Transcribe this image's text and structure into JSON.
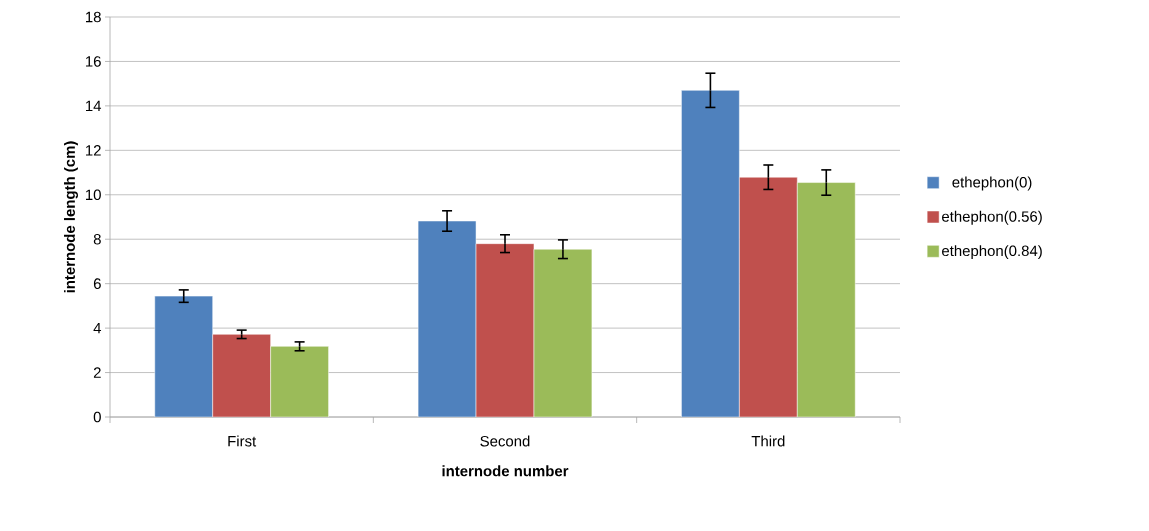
{
  "chart_data": {
    "type": "bar",
    "xlabel": "internode number",
    "ylabel": "internode length (cm)",
    "categories": [
      "First",
      "Second",
      "Third"
    ],
    "series": [
      {
        "name": "ethephon(0)",
        "color": "#4f81bd",
        "values": [
          5.44,
          8.82,
          14.7
        ],
        "errors": [
          0.28,
          0.46,
          0.77
        ]
      },
      {
        "name": "ethephon(0.56)",
        "color": "#c0504d",
        "values": [
          3.72,
          7.8,
          10.79
        ],
        "errors": [
          0.19,
          0.4,
          0.55
        ]
      },
      {
        "name": "ethephon(0.84)",
        "color": "#9bbb59",
        "values": [
          3.18,
          7.55,
          10.55
        ],
        "errors": [
          0.2,
          0.42,
          0.57
        ]
      }
    ],
    "ylim": [
      0,
      18
    ],
    "yticks": [
      0,
      2,
      4,
      6,
      8,
      10,
      12,
      14,
      16,
      18
    ],
    "grid": "y",
    "legend": "right"
  }
}
